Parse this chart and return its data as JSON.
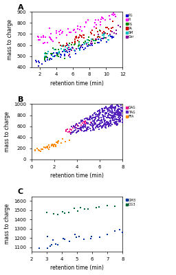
{
  "panel_A": {
    "legend_labels": [
      "PG",
      "PI",
      "PS",
      "PA",
      "SM",
      "Cer"
    ],
    "legend_colors": [
      "#1010cc",
      "#ff00ff",
      "#008800",
      "#cc0000",
      "#00bbbb",
      "#880099"
    ],
    "xlim": [
      1,
      12
    ],
    "ylim": [
      400,
      900
    ],
    "ylabel": "mass to charge",
    "xlabel": "retention time (min)",
    "panel_label": "A",
    "xticks": [
      2,
      4,
      6,
      8,
      10,
      12
    ],
    "yticks": [
      400,
      500,
      600,
      700,
      800,
      900
    ]
  },
  "panel_B": {
    "legend_labels": [
      "DAG",
      "TAG",
      "FFA"
    ],
    "legend_colors": [
      "#ee1188",
      "#5522bb",
      "#ff8800"
    ],
    "xlim": [
      0,
      8
    ],
    "ylim": [
      0,
      1000
    ],
    "ylabel": "mass to charge",
    "xlabel": "retention time (min)",
    "panel_label": "B",
    "xticks": [
      0,
      2,
      4,
      6,
      8
    ],
    "yticks": [
      0,
      200,
      400,
      600,
      800,
      1000
    ]
  },
  "panel_C": {
    "legend_labels": [
      "GM3",
      "DG3"
    ],
    "legend_colors": [
      "#003399",
      "#006633"
    ],
    "xlim": [
      2,
      8
    ],
    "ylim": [
      1050,
      1650
    ],
    "ylabel": "mass to charge",
    "xlabel": "retention time (min)",
    "panel_label": "C",
    "xticks": [
      2,
      3,
      4,
      5,
      6,
      7,
      8
    ],
    "yticks": [
      1100,
      1200,
      1300,
      1400,
      1500,
      1600
    ]
  },
  "fig_bg": "#ffffff",
  "label_fontsize": 5.5,
  "tick_fontsize": 5,
  "panel_label_fontsize": 8
}
